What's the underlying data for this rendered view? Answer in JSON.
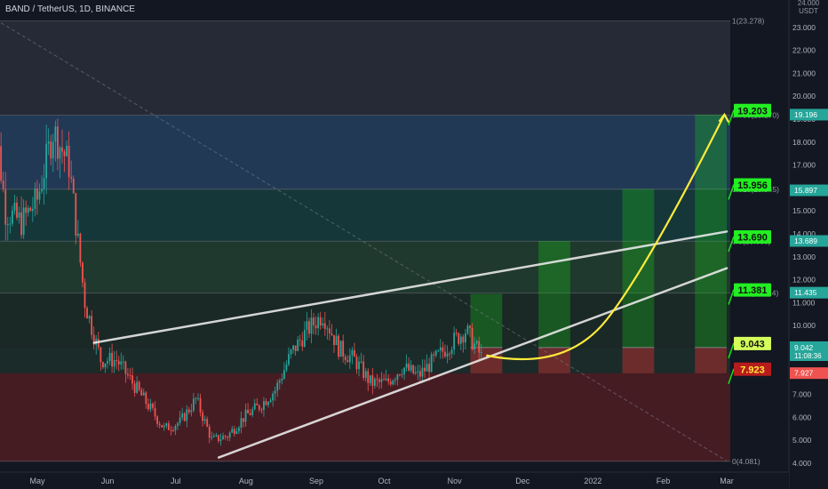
{
  "header": {
    "title": "BAND / TetherUS, 1D, BINANCE"
  },
  "colors": {
    "background": "#131722",
    "up_candle": "#26a69a",
    "down_candle": "#ef5350",
    "trendline": "#e8e8e8",
    "projection": "#ffeb3b",
    "target_box": "#18d818",
    "stop_box": "#d32f2f"
  },
  "chart_data": {
    "type": "candlestick",
    "title": "BAND / TetherUS, 1D, BINANCE",
    "y_axis": {
      "unit": "USDT",
      "top_label": "24.000",
      "ticks": [
        "4.000",
        "5.000",
        "6.000",
        "7.000",
        "8.000",
        "9.000",
        "10.000",
        "11.000",
        "12.000",
        "13.000",
        "14.000",
        "15.000",
        "16.000",
        "17.000",
        "18.000",
        "19.000",
        "20.000",
        "21.000",
        "22.000",
        "23.000"
      ]
    },
    "x_axis": {
      "ticks": [
        "May",
        "Jun",
        "Jul",
        "Aug",
        "Sep",
        "Oct",
        "Nov",
        "Dec",
        "2022",
        "Feb",
        "Mar"
      ]
    },
    "current_price": {
      "value": "9.042",
      "countdown": "11:08:36"
    },
    "fib_levels": [
      {
        "label": "1(23.278)",
        "value": 23.278
      },
      {
        "label": "0.786(19.170)",
        "value": 19.17
      },
      {
        "label": "0.618(15.945)",
        "value": 15.945
      },
      {
        "label": "0.5(13.680)",
        "value": 13.68
      },
      {
        "label": "0.382(11.414)",
        "value": 11.414
      },
      {
        "label": "0(4.081)",
        "value": 4.081
      }
    ],
    "price_tags": [
      {
        "text": "19.196",
        "value": 19.196,
        "color": "#26a69a"
      },
      {
        "text": "15.897",
        "value": 15.897,
        "color": "#26a69a"
      },
      {
        "text": "13.689",
        "value": 13.689,
        "color": "#26a69a"
      },
      {
        "text": "11.435",
        "value": 11.435,
        "color": "#26a69a"
      },
      {
        "text": "7.927",
        "value": 7.927,
        "color": "#ef5350"
      }
    ],
    "target_labels": [
      {
        "text": "19.203",
        "value": 19.203,
        "kind": "target"
      },
      {
        "text": "15.956",
        "value": 15.956,
        "kind": "target"
      },
      {
        "text": "13.690",
        "value": 13.69,
        "kind": "target"
      },
      {
        "text": "11.381",
        "value": 11.381,
        "kind": "target"
      },
      {
        "text": "9.043",
        "value": 9.043,
        "kind": "entry"
      },
      {
        "text": "7.923",
        "value": 7.923,
        "kind": "stop"
      }
    ],
    "wedge_lines": [
      {
        "name": "upper",
        "from": {
          "date": "2021-05-26",
          "price": 9.25
        },
        "to": {
          "date": "2022-03-01",
          "price": 14.1
        }
      },
      {
        "name": "lower",
        "from": {
          "date": "2021-07-20",
          "price": 4.25
        },
        "to": {
          "date": "2022-03-01",
          "price": 12.5
        }
      }
    ],
    "diagonal": {
      "from": {
        "date": "2021-04-15",
        "price": 23.2
      },
      "to": {
        "date": "2022-03-01",
        "price": 4.1
      }
    },
    "projection_path": [
      {
        "date": "2021-11-15",
        "price": 8.7
      },
      {
        "date": "2021-12-20",
        "price": 8.0
      },
      {
        "date": "2022-01-25",
        "price": 12.5
      },
      {
        "date": "2022-02-28",
        "price": 19.2
      }
    ],
    "position_boxes": [
      {
        "start": "2021-11-08",
        "end": "2021-11-22",
        "target": 11.381,
        "entry": 9.043,
        "stop": 7.923
      },
      {
        "start": "2021-12-08",
        "end": "2021-12-22",
        "target": 13.69,
        "entry": 9.043,
        "stop": 7.923
      },
      {
        "start": "2022-01-14",
        "end": "2022-01-28",
        "target": 15.956,
        "entry": 9.043,
        "stop": 7.923
      },
      {
        "start": "2022-02-15",
        "end": "2022-03-01",
        "target": 19.203,
        "entry": 9.043,
        "stop": 7.923
      }
    ],
    "closes_weekly": [
      {
        "date": "2021-04-10",
        "price": 21.0
      },
      {
        "date": "2021-04-17",
        "price": 15.0
      },
      {
        "date": "2021-04-24",
        "price": 14.5
      },
      {
        "date": "2021-05-01",
        "price": 15.5
      },
      {
        "date": "2021-05-08",
        "price": 18.5
      },
      {
        "date": "2021-05-15",
        "price": 17.0
      },
      {
        "date": "2021-05-22",
        "price": 11.0
      },
      {
        "date": "2021-05-29",
        "price": 8.5
      },
      {
        "date": "2021-06-05",
        "price": 8.5
      },
      {
        "date": "2021-06-12",
        "price": 7.5
      },
      {
        "date": "2021-06-19",
        "price": 6.5
      },
      {
        "date": "2021-06-26",
        "price": 5.5
      },
      {
        "date": "2021-07-03",
        "price": 5.8
      },
      {
        "date": "2021-07-10",
        "price": 6.8
      },
      {
        "date": "2021-07-17",
        "price": 5.0
      },
      {
        "date": "2021-07-24",
        "price": 5.2
      },
      {
        "date": "2021-07-31",
        "price": 6.0
      },
      {
        "date": "2021-08-07",
        "price": 6.5
      },
      {
        "date": "2021-08-14",
        "price": 7.2
      },
      {
        "date": "2021-08-21",
        "price": 8.8
      },
      {
        "date": "2021-08-28",
        "price": 9.8
      },
      {
        "date": "2021-09-04",
        "price": 10.5
      },
      {
        "date": "2021-09-11",
        "price": 9.0
      },
      {
        "date": "2021-09-18",
        "price": 8.5
      },
      {
        "date": "2021-09-25",
        "price": 7.5
      },
      {
        "date": "2021-10-02",
        "price": 7.5
      },
      {
        "date": "2021-10-09",
        "price": 8.2
      },
      {
        "date": "2021-10-16",
        "price": 7.8
      },
      {
        "date": "2021-10-23",
        "price": 8.5
      },
      {
        "date": "2021-10-30",
        "price": 9.2
      },
      {
        "date": "2021-11-06",
        "price": 9.8
      },
      {
        "date": "2021-11-13",
        "price": 8.6
      }
    ]
  }
}
